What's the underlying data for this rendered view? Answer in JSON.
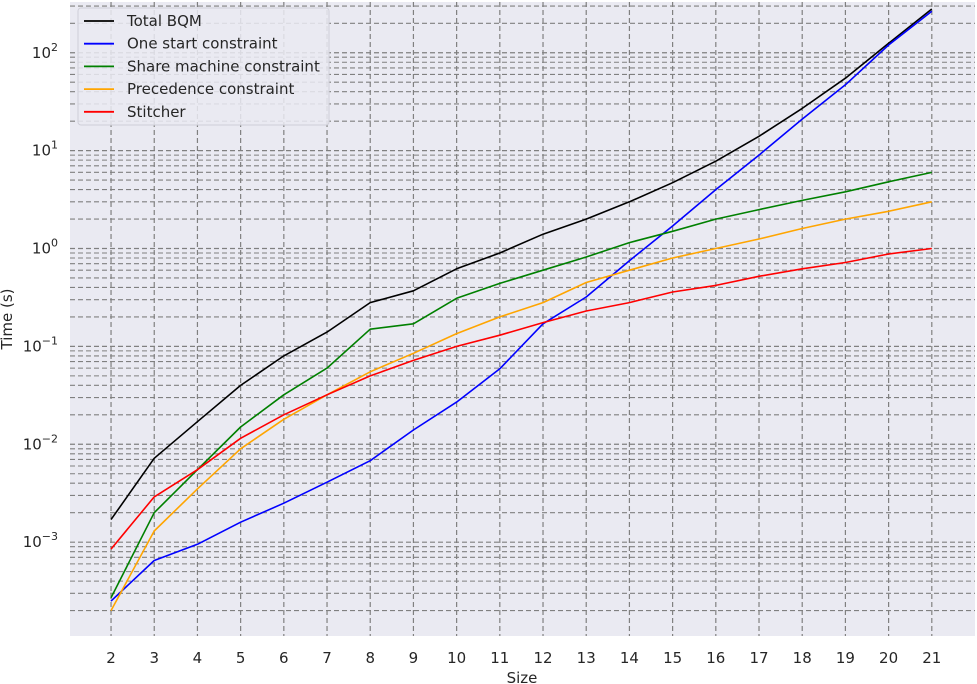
{
  "chart_data": {
    "type": "line",
    "title": "",
    "xlabel": "Size",
    "ylabel": "Time (s)",
    "x": [
      2,
      3,
      4,
      5,
      6,
      7,
      8,
      9,
      10,
      11,
      12,
      13,
      14,
      15,
      16,
      17,
      18,
      19,
      20,
      21
    ],
    "yscale": "log",
    "ylim": [
      0.00011,
      330
    ],
    "grid": true,
    "legend_position": "top-left",
    "y_tick_values": [
      0.001,
      0.01,
      0.1,
      1,
      10,
      100
    ],
    "y_tick_labels": [
      {
        "base": "10",
        "exp": "−3"
      },
      {
        "base": "10",
        "exp": "−2"
      },
      {
        "base": "10",
        "exp": "−1"
      },
      {
        "base": "10",
        "exp": "0"
      },
      {
        "base": "10",
        "exp": "1"
      },
      {
        "base": "10",
        "exp": "2"
      }
    ],
    "series": [
      {
        "name": "Total BQM",
        "color": "#000000",
        "values": [
          0.0017,
          0.0072,
          0.017,
          0.04,
          0.08,
          0.14,
          0.28,
          0.37,
          0.62,
          0.9,
          1.4,
          2.0,
          3.0,
          4.7,
          7.8,
          14.0,
          27.0,
          55.0,
          125.0,
          280.0
        ]
      },
      {
        "name": "One start constraint",
        "color": "#0000ff",
        "values": [
          0.00025,
          0.00065,
          0.00095,
          0.0016,
          0.0025,
          0.0041,
          0.0068,
          0.014,
          0.027,
          0.059,
          0.17,
          0.32,
          0.75,
          1.7,
          4.0,
          9.0,
          21.0,
          47.0,
          120.0,
          265.0
        ]
      },
      {
        "name": "Share machine constraint",
        "color": "#008000",
        "values": [
          0.00027,
          0.002,
          0.0055,
          0.015,
          0.032,
          0.06,
          0.15,
          0.17,
          0.31,
          0.44,
          0.6,
          0.82,
          1.15,
          1.5,
          2.0,
          2.5,
          3.1,
          3.8,
          4.8,
          6.0
        ]
      },
      {
        "name": "Precedence constraint",
        "color": "#ffa500",
        "values": [
          0.0002,
          0.0013,
          0.0035,
          0.009,
          0.018,
          0.032,
          0.055,
          0.085,
          0.135,
          0.2,
          0.28,
          0.45,
          0.6,
          0.8,
          1.0,
          1.25,
          1.6,
          2.0,
          2.4,
          3.0
        ]
      },
      {
        "name": "Stitcher",
        "color": "#ff0000",
        "values": [
          0.00085,
          0.0029,
          0.0055,
          0.0115,
          0.02,
          0.032,
          0.05,
          0.072,
          0.1,
          0.13,
          0.175,
          0.23,
          0.28,
          0.36,
          0.42,
          0.52,
          0.62,
          0.72,
          0.88,
          1.0
        ]
      }
    ]
  }
}
